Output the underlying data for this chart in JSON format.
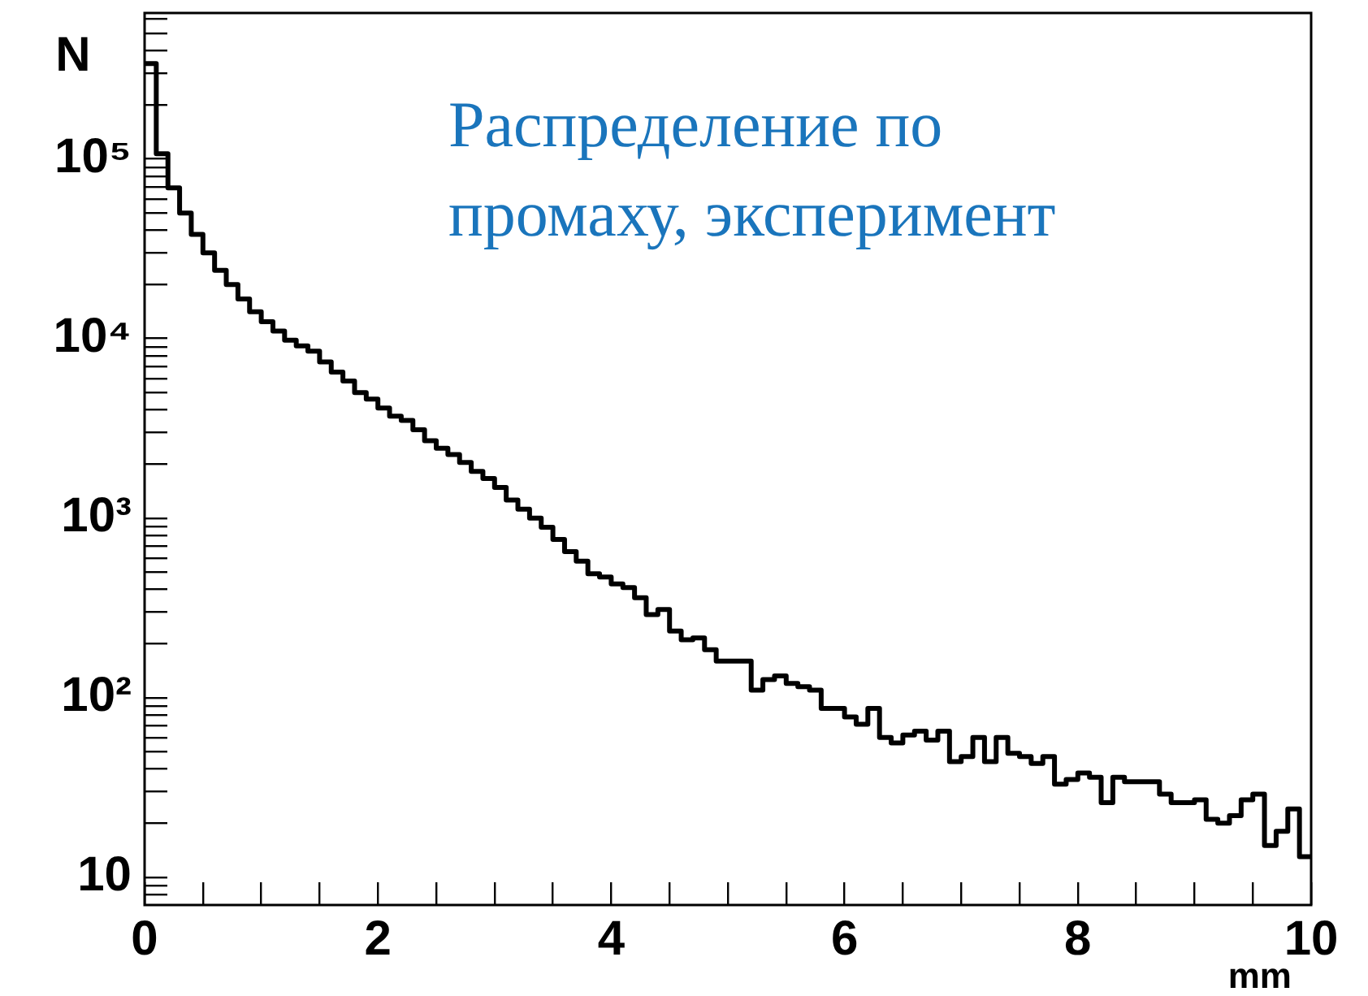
{
  "chart_data": {
    "type": "histogram",
    "ylabel": "N",
    "xlabel": "mm",
    "annotations": [
      "Распределение по промаху, эксперимент"
    ],
    "bins": [
      0,
      0.1,
      0.2,
      0.3,
      0.4,
      0.5,
      0.6,
      0.7,
      0.8,
      0.9,
      1,
      1.1,
      1.2,
      1.3,
      1.4,
      1.5,
      1.6,
      1.7,
      1.8,
      1.9,
      2,
      2.1,
      2.2,
      2.3,
      2.4,
      2.5,
      2.6,
      2.7,
      2.8,
      2.9,
      3,
      3.1,
      3.2,
      3.3,
      3.4,
      3.5,
      3.6,
      3.7,
      3.8,
      3.9,
      4,
      4.1,
      4.2,
      4.3,
      4.4,
      4.5,
      4.6,
      4.7,
      4.8,
      4.9,
      5,
      5.1,
      5.2,
      5.3,
      5.4,
      5.5,
      5.6,
      5.7,
      5.8,
      5.9,
      6,
      6.1,
      6.2,
      6.3,
      6.4,
      6.5,
      6.6,
      6.7,
      6.8,
      6.9,
      7,
      7.1,
      7.2,
      7.3,
      7.4,
      7.5,
      7.6,
      7.7,
      7.8,
      7.9,
      8,
      8.1,
      8.2,
      8.3,
      8.4,
      8.5,
      8.6,
      8.7,
      8.8,
      8.9,
      9,
      9.1,
      9.2,
      9.3,
      9.4,
      9.5,
      9.6,
      9.7,
      9.8,
      9.9,
      10
    ],
    "values": [
      340000,
      107000,
      69000,
      50000,
      38000,
      30000,
      24000,
      20000,
      16600,
      14100,
      12400,
      11000,
      9800,
      9100,
      8500,
      7400,
      6500,
      5800,
      5000,
      4600,
      4100,
      3700,
      3500,
      3100,
      2700,
      2450,
      2260,
      2040,
      1820,
      1660,
      1480,
      1260,
      1120,
      1000,
      890,
      760,
      650,
      575,
      490,
      470,
      430,
      410,
      360,
      290,
      310,
      235,
      210,
      215,
      185,
      160,
      160,
      160,
      110,
      126,
      132,
      120,
      115,
      110,
      87,
      87,
      78,
      71,
      87,
      60,
      56,
      62,
      65,
      58,
      65,
      44,
      47,
      60,
      44,
      60,
      49,
      47,
      43,
      47,
      33,
      35,
      38,
      36,
      26,
      36,
      34,
      34,
      34,
      29,
      26,
      26,
      27,
      21,
      20,
      22,
      27,
      29,
      15,
      18,
      24,
      13
    ],
    "color": "#000000",
    "log": "y",
    "xlim": [
      0,
      10
    ],
    "xticks": [
      0,
      {
        "value": 0.5,
        "label": null
      },
      {
        "value": 1,
        "label": null
      },
      {
        "value": 1.5,
        "label": null
      },
      2,
      {
        "value": 2.5,
        "label": null
      },
      {
        "value": 3,
        "label": null
      },
      {
        "value": 3.5,
        "label": null
      },
      4,
      {
        "value": 4.5,
        "label": null
      },
      {
        "value": 5,
        "label": null
      },
      {
        "value": 5.5,
        "label": null
      },
      6,
      {
        "value": 6.5,
        "label": null
      },
      {
        "value": 7,
        "label": null
      },
      {
        "value": 7.5,
        "label": null
      },
      8,
      {
        "value": 8.5,
        "label": null
      },
      {
        "value": 9,
        "label": null
      },
      {
        "value": 9.5,
        "label": null
      },
      10
    ],
    "ylim": [
      7,
      650000
    ],
    "yticks": [
      {
        "value": 8,
        "label": null
      },
      {
        "value": 9,
        "label": null
      },
      10,
      {
        "value": 20,
        "label": null
      },
      {
        "value": 30,
        "label": null
      },
      {
        "value": 40,
        "label": null
      },
      {
        "value": 50,
        "label": null
      },
      {
        "value": 60,
        "label": null
      },
      {
        "value": 70,
        "label": null
      },
      {
        "value": 80,
        "label": null
      },
      {
        "value": 90,
        "label": null
      },
      {
        "value": 100,
        "label": "10²"
      },
      {
        "value": 200,
        "label": null
      },
      {
        "value": 300,
        "label": null
      },
      {
        "value": 400,
        "label": null
      },
      {
        "value": 500,
        "label": null
      },
      {
        "value": 600,
        "label": null
      },
      {
        "value": 700,
        "label": null
      },
      {
        "value": 800,
        "label": null
      },
      {
        "value": 900,
        "label": null
      },
      {
        "value": 1000,
        "label": "10³"
      },
      {
        "value": 2000,
        "label": null
      },
      {
        "value": 3000,
        "label": null
      },
      {
        "value": 4000,
        "label": null
      },
      {
        "value": 5000,
        "label": null
      },
      {
        "value": 6000,
        "label": null
      },
      {
        "value": 7000,
        "label": null
      },
      {
        "value": 8000,
        "label": null
      },
      {
        "value": 9000,
        "label": null
      },
      {
        "value": 10000,
        "label": "10⁴"
      },
      {
        "value": 20000,
        "label": null
      },
      {
        "value": 30000,
        "label": null
      },
      {
        "value": 40000,
        "label": null
      },
      {
        "value": 50000,
        "label": null
      },
      {
        "value": 60000,
        "label": null
      },
      {
        "value": 70000,
        "label": null
      },
      {
        "value": 80000,
        "label": null
      },
      {
        "value": 90000,
        "label": null
      },
      {
        "value": 100000,
        "label": "10⁵"
      },
      {
        "value": 200000,
        "label": null
      },
      {
        "value": 300000,
        "label": null
      },
      {
        "value": 400000,
        "label": null
      },
      {
        "value": 500000,
        "label": null
      },
      {
        "value": 600000,
        "label": null
      }
    ],
    "grid": false,
    "legend": false
  }
}
